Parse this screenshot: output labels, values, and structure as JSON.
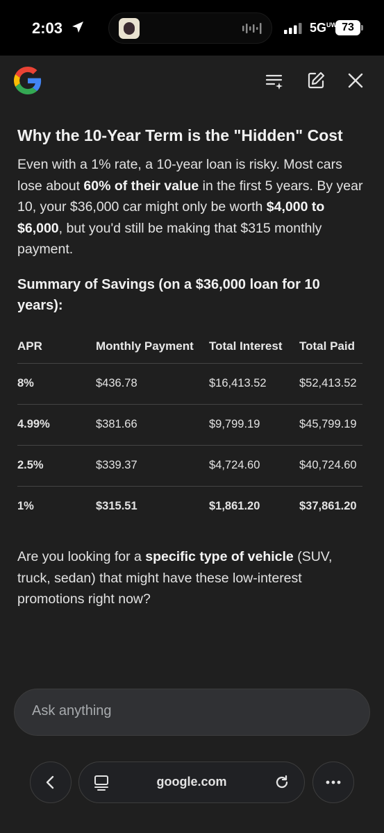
{
  "status_bar": {
    "time": "2:03",
    "network": "5G",
    "network_sup": "UW",
    "battery": "73"
  },
  "header": {
    "logo": "google-g-logo",
    "icons": [
      "list-sparkle-icon",
      "edit-icon",
      "close-icon"
    ]
  },
  "content": {
    "heading": "Why the 10-Year Term is the \"Hidden\" Cost",
    "para1": {
      "t1": "Even with a 1% rate, a 10-year loan is risky. Most cars lose about ",
      "b1": "60% of their value",
      "t2": " in the first 5 years. By year 10, your $36,000 car might only be worth ",
      "b2": "$4,000 to $6,000",
      "t3": ", but you'd still be making that $315 monthly payment."
    },
    "summary_heading": "Summary of Savings (on a $36,000 loan for 10 years):",
    "table": {
      "headers": [
        "APR",
        "Monthly Payment",
        "Total Interest",
        "Total Paid"
      ],
      "rows": [
        [
          "8%",
          "$436.78",
          "$16,413.52",
          "$52,413.52"
        ],
        [
          "4.99%",
          "$381.66",
          "$9,799.19",
          "$45,799.19"
        ],
        [
          "2.5%",
          "$339.37",
          "$4,724.60",
          "$40,724.60"
        ],
        [
          "1%",
          "$315.51",
          "$1,861.20",
          "$37,861.20"
        ]
      ]
    },
    "para2": {
      "t1": "Are you looking for a ",
      "b1": "specific type of vehicle",
      "t2": " (SUV, truck, sedan) that might have these low-interest promotions right now?"
    }
  },
  "input": {
    "placeholder": "Ask anything"
  },
  "bottom_nav": {
    "url": "google.com"
  },
  "colors": {
    "background": "#1f1f1f",
    "text": "#e3e3e3",
    "input_bg": "#303134"
  }
}
